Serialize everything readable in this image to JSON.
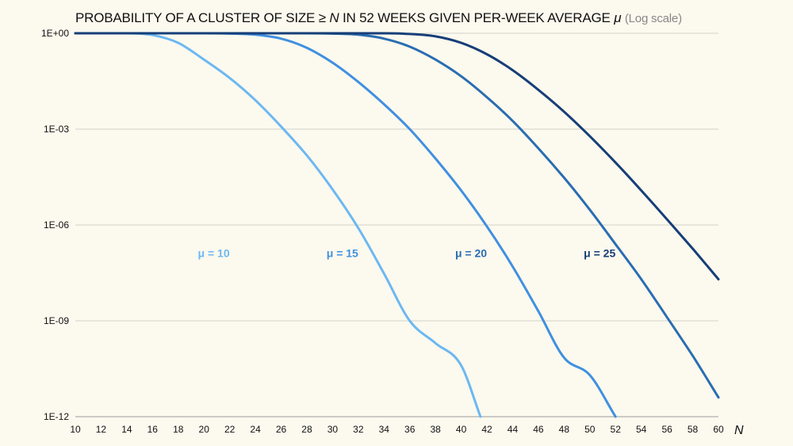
{
  "chart_data": {
    "type": "line",
    "title": {
      "part1": "PROBABILITY OF A CLUSTER OF SIZE ≥ ",
      "n_symbol": "N",
      "part2": " IN 52 WEEKS GIVEN PER-WEEK AVERAGE ",
      "mu_symbol": "μ",
      "subtitle": "(Log scale)"
    },
    "xlabel": "N",
    "ylabel": "",
    "x_scale": "linear",
    "y_scale": "log",
    "xlim": [
      10,
      60
    ],
    "ylim": [
      1e-12,
      1
    ],
    "xticks": [
      10,
      12,
      14,
      16,
      18,
      20,
      22,
      24,
      26,
      28,
      30,
      32,
      34,
      36,
      38,
      40,
      42,
      44,
      46,
      48,
      50,
      52,
      54,
      56,
      58,
      60
    ],
    "yticks": [
      {
        "value": 1,
        "label": "1E+00"
      },
      {
        "value": 0.001,
        "label": "1E-03"
      },
      {
        "value": 1e-06,
        "label": "1E-06"
      },
      {
        "value": 1e-09,
        "label": "1E-09"
      },
      {
        "value": 1e-12,
        "label": "1E-12"
      }
    ],
    "grid": "horizontal",
    "series": [
      {
        "name": "μ = 10",
        "color": "#6cb8f2",
        "label_at": [
          22,
          1e-07
        ],
        "x": [
          10,
          14,
          16,
          18,
          20,
          22,
          24,
          26,
          28,
          30,
          32,
          34,
          36,
          38,
          40,
          41.5
        ],
        "y": [
          1,
          1,
          0.88,
          0.5,
          0.15,
          0.04,
          0.008,
          0.0012,
          0.00015,
          1.3e-05,
          8e-07,
          3e-08,
          1e-09,
          2e-10,
          4e-11,
          1e-12
        ]
      },
      {
        "name": "μ = 15",
        "color": "#3f90e0",
        "label_at": [
          32,
          1e-07
        ],
        "x": [
          10,
          20,
          22,
          24,
          26,
          28,
          30,
          32,
          34,
          36,
          38,
          40,
          42,
          44,
          46,
          48,
          50,
          52
        ],
        "y": [
          1,
          1,
          0.98,
          0.9,
          0.68,
          0.35,
          0.12,
          0.03,
          0.006,
          0.001,
          0.00012,
          1.2e-05,
          9e-07,
          5e-08,
          2e-09,
          7e-11,
          2e-11,
          1e-12
        ]
      },
      {
        "name": "μ = 20",
        "color": "#2a6db2",
        "label_at": [
          42,
          1e-07
        ],
        "x": [
          10,
          28,
          30,
          32,
          34,
          36,
          38,
          40,
          42,
          44,
          46,
          48,
          50,
          52,
          54,
          56,
          58,
          60
        ],
        "y": [
          1,
          1,
          0.98,
          0.9,
          0.68,
          0.38,
          0.15,
          0.045,
          0.01,
          0.0018,
          0.00025,
          3e-05,
          3e-06,
          2.5e-07,
          2e-08,
          1.3e-09,
          8e-11,
          4e-12
        ]
      },
      {
        "name": "μ = 25",
        "color": "#163e78",
        "label_at": [
          52,
          1e-07
        ],
        "x": [
          10,
          34,
          36,
          38,
          40,
          42,
          44,
          46,
          48,
          50,
          52,
          54,
          56,
          58,
          60
        ],
        "y": [
          1,
          1,
          0.95,
          0.8,
          0.5,
          0.22,
          0.07,
          0.017,
          0.0035,
          0.0006,
          9e-05,
          1.2e-05,
          1.5e-06,
          1.8e-07,
          2e-08
        ]
      }
    ]
  }
}
